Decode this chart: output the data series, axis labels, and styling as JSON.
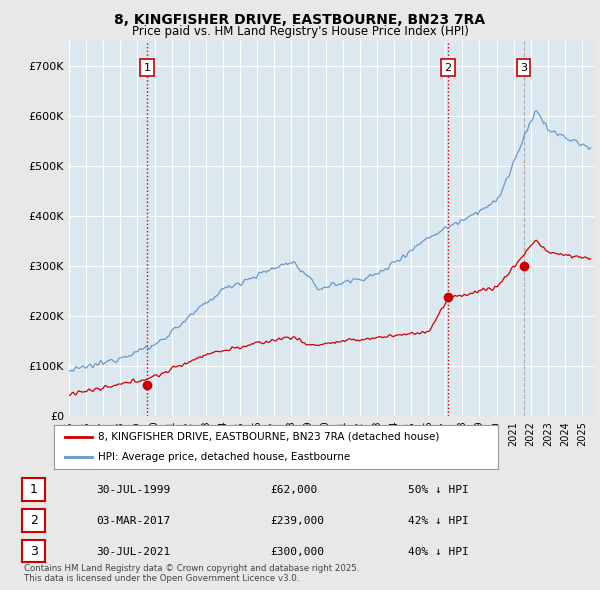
{
  "title_line1": "8, KINGFISHER DRIVE, EASTBOURNE, BN23 7RA",
  "title_line2": "Price paid vs. HM Land Registry's House Price Index (HPI)",
  "background_color": "#e8e8e8",
  "plot_bg_color": "#dce8f0",
  "ylabel": "",
  "ylim": [
    0,
    750000
  ],
  "yticks": [
    0,
    100000,
    200000,
    300000,
    400000,
    500000,
    600000,
    700000
  ],
  "ytick_labels": [
    "£0",
    "£100K",
    "£200K",
    "£300K",
    "£400K",
    "£500K",
    "£600K",
    "£700K"
  ],
  "xlim_start": 1995.0,
  "xlim_end": 2025.7,
  "sale_dates_num": [
    1999.58,
    2017.17,
    2021.58
  ],
  "sale_prices": [
    62000,
    239000,
    300000
  ],
  "sale_labels": [
    "1",
    "2",
    "3"
  ],
  "sale_color": "#cc0000",
  "hpi_color": "#6699cc",
  "vline_colors": [
    "#cc0000",
    "#cc0000",
    "#aaaaaa"
  ],
  "legend_entries": [
    "8, KINGFISHER DRIVE, EASTBOURNE, BN23 7RA (detached house)",
    "HPI: Average price, detached house, Eastbourne"
  ],
  "table_rows": [
    [
      "1",
      "30-JUL-1999",
      "£62,000",
      "50% ↓ HPI"
    ],
    [
      "2",
      "03-MAR-2017",
      "£239,000",
      "42% ↓ HPI"
    ],
    [
      "3",
      "30-JUL-2021",
      "£300,000",
      "40% ↓ HPI"
    ]
  ],
  "footnote": "Contains HM Land Registry data © Crown copyright and database right 2025.\nThis data is licensed under the Open Government Licence v3.0.",
  "grid_color": "#ffffff"
}
